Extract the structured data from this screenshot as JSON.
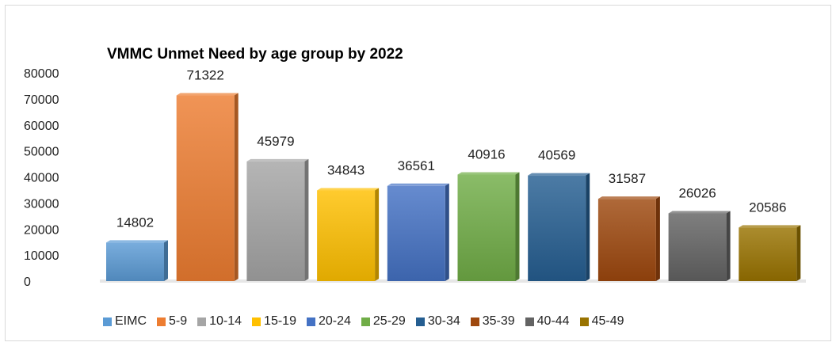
{
  "chart_data": {
    "type": "bar",
    "title": "VMMC Unmet Need by age group by 2022",
    "xlabel": "",
    "ylabel": "",
    "ylim": [
      0,
      80000
    ],
    "yticks": [
      0,
      10000,
      20000,
      30000,
      40000,
      50000,
      60000,
      70000,
      80000
    ],
    "categories": [
      "EIMC",
      "5-9",
      "10-14",
      "15-19",
      "20-24",
      "25-29",
      "30-34",
      "35-39",
      "40-44",
      "45-49"
    ],
    "values": [
      14802,
      71322,
      45979,
      34843,
      36561,
      40916,
      40569,
      31587,
      26026,
      20586
    ],
    "data_labels": [
      "14802",
      "71322",
      "45979",
      "34843",
      "36561",
      "40916",
      "40569",
      "31587",
      "26026",
      "20586"
    ],
    "colors": [
      "#5b9bd5",
      "#ed7d31",
      "#a5a5a5",
      "#ffc000",
      "#4472c4",
      "#70ad47",
      "#255e91",
      "#9e480e",
      "#636363",
      "#997300"
    ],
    "grid": false,
    "legend": "bottom"
  }
}
